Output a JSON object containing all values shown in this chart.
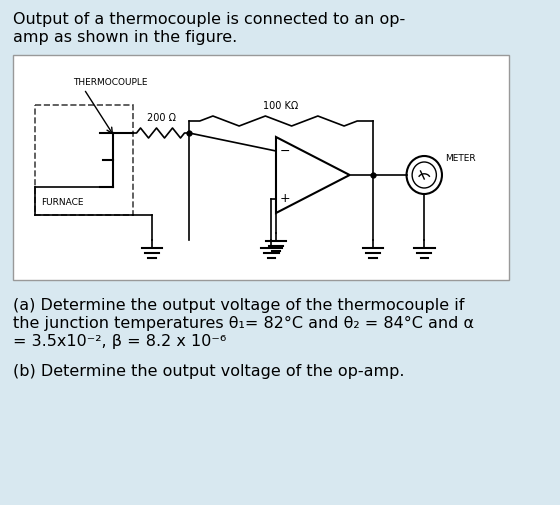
{
  "background_color": "#d8e8f0",
  "circuit_bg": "#f0f0f0",
  "title_line1": "Output of a thermocouple is connected to an op-",
  "title_line2": "amp as shown in the figure.",
  "label_thermocouple": "THERMOCOUPLE",
  "label_200": "200 Ω",
  "label_100k": "100 KΩ",
  "label_furnace": "FURNACE",
  "label_meter": "METER",
  "qa_line1": "(a) Determine the output voltage of the thermocouple if",
  "qa_line2": "the junction temperatures θ₁= 82°C and θ₂ = 84°C and α",
  "qa_line3": "= 3.5x10⁻², β = 8.2 x 10⁻⁶",
  "qb_line1": "(b) Determine the output voltage of the op-amp."
}
